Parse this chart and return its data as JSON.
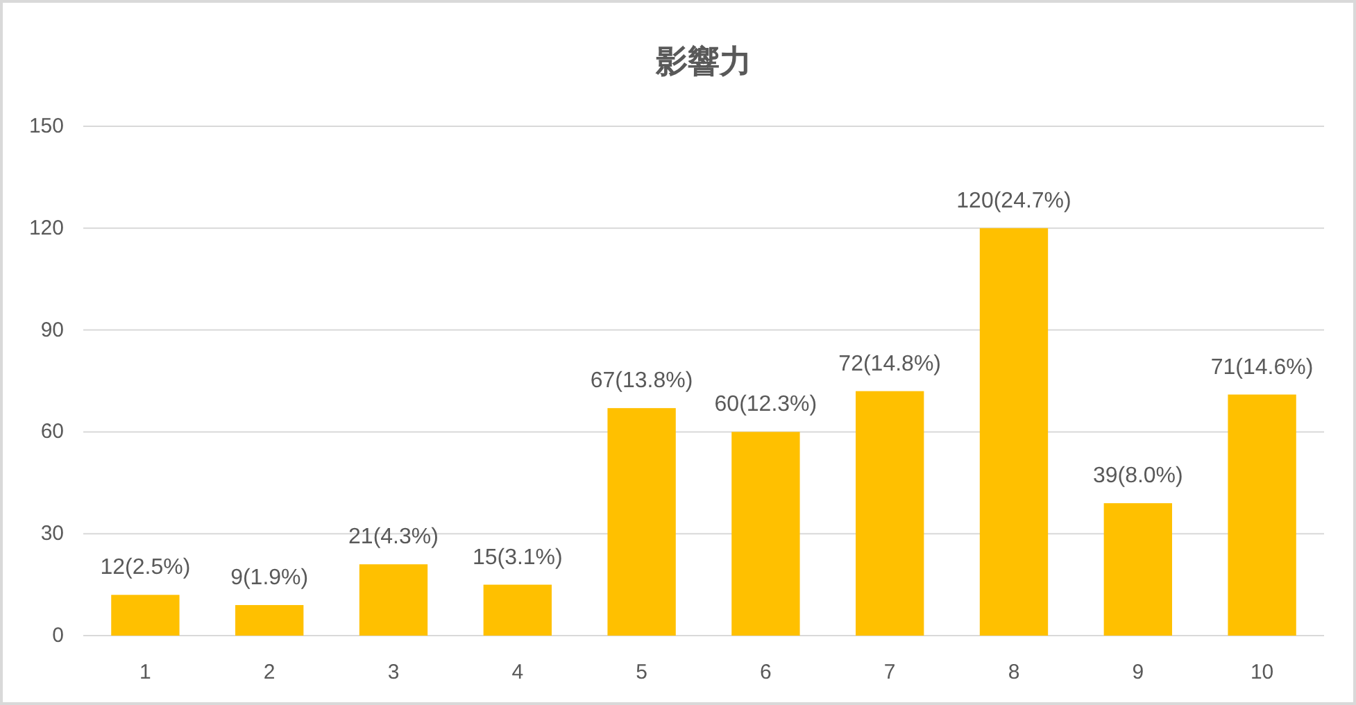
{
  "chart_data": {
    "type": "bar",
    "title": "影響力",
    "categories": [
      "1",
      "2",
      "3",
      "4",
      "5",
      "6",
      "7",
      "8",
      "9",
      "10"
    ],
    "values": [
      12,
      9,
      21,
      15,
      67,
      60,
      72,
      120,
      39,
      71
    ],
    "value_labels": [
      "12(2.5%)",
      "9(1.9%)",
      "21(4.3%)",
      "15(3.1%)",
      "67(13.8%)",
      "60(12.3%)",
      "72(14.8%)",
      "120(24.7%)",
      "39(8.0%)",
      "71(14.6%)"
    ],
    "color": "#ffc000",
    "ylim": [
      0,
      150
    ],
    "yticks": [
      0,
      30,
      60,
      90,
      120,
      150
    ],
    "grid": "y"
  }
}
